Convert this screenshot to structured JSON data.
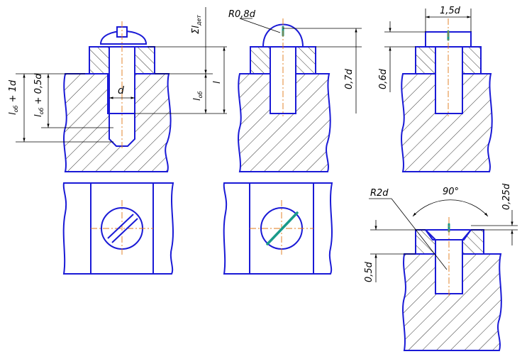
{
  "colors": {
    "outline": "#1a1ad6",
    "dimension": "#000000",
    "center_line": "#e07818",
    "slot": "#1a9a8a",
    "hatch": "#000000"
  },
  "labels": {
    "sum_l_dim": "Σl",
    "sum_l_sub": "дет",
    "l_ob_1d": "l",
    "l_ob_1d_sub": "об",
    "l_ob_1d_suffix": " + 1d",
    "l_ob_05d": "l",
    "l_ob_05d_sub": "об",
    "l_ob_05d_suffix": " + 0,5d",
    "l_ob": "l",
    "l_ob_sub": "об",
    "l": "l",
    "d": "d",
    "r08d": "R0,8d",
    "d07": "0,7d",
    "d06": "0,6d",
    "d15": "1,5d",
    "r2d": "R2d",
    "angle90": "90°",
    "d025": "0,25d",
    "d05": "0,5d"
  }
}
